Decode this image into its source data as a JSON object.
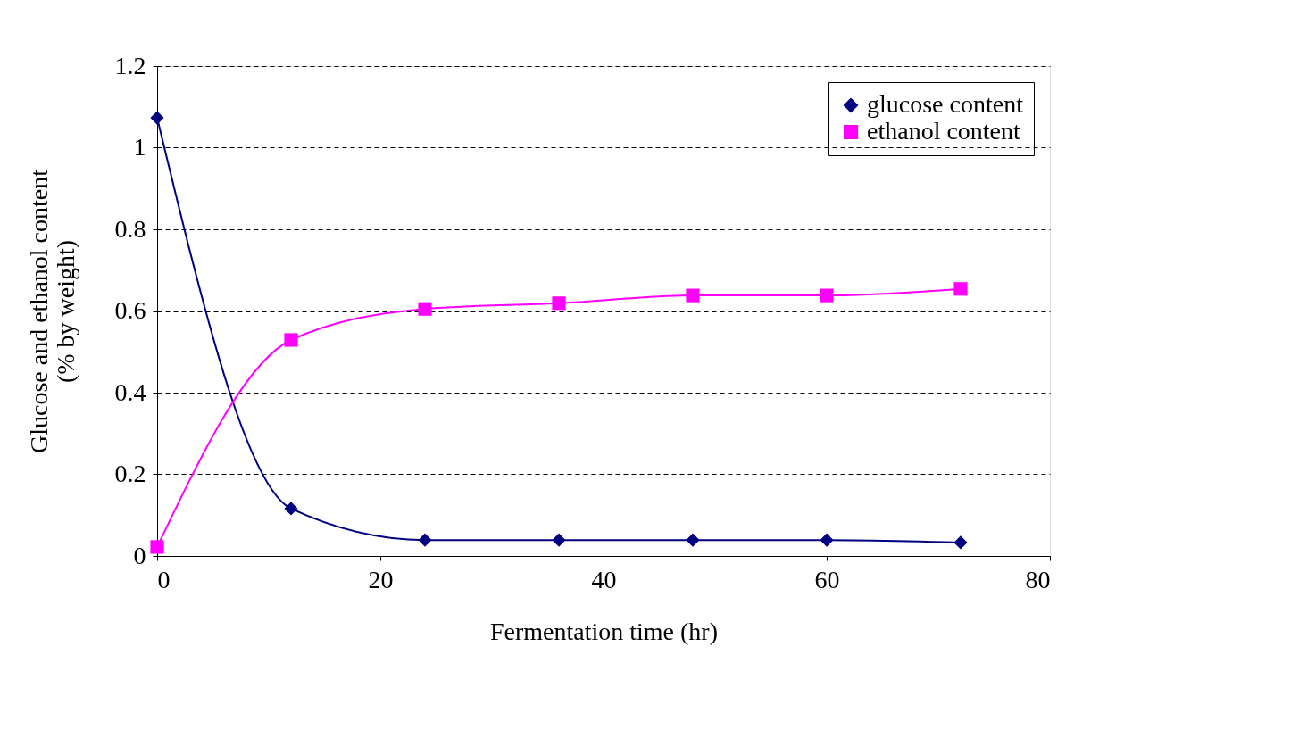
{
  "chart_data": {
    "type": "line",
    "xlabel": "Fermentation time (hr)",
    "ylabel": "Glucose and ethanol content (% by weight)",
    "x": [
      0,
      12,
      24,
      36,
      48,
      60,
      72
    ],
    "series": [
      {
        "name": "glucose content",
        "color": "#000080",
        "marker": "diamond",
        "values": [
          1.073,
          0.116,
          0.039,
          0.039,
          0.039,
          0.039,
          0.033
        ]
      },
      {
        "name": "ethanol content",
        "color": "#ff00ff",
        "marker": "square",
        "values": [
          0.022,
          0.529,
          0.605,
          0.619,
          0.638,
          0.638,
          0.654
        ]
      }
    ],
    "xlim": [
      0,
      80
    ],
    "xticks": [
      0,
      20,
      40,
      60,
      80
    ],
    "ylim": [
      0,
      1.2
    ],
    "yticks": [
      0,
      0.2,
      0.4,
      0.6,
      0.8,
      1,
      1.2
    ],
    "grid": "y",
    "legend": "top right",
    "line_style": "solid"
  }
}
